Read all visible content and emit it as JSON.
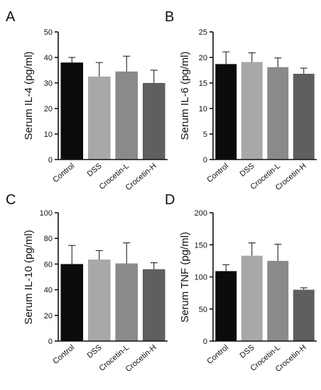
{
  "chart_data": [
    {
      "panel": "A",
      "type": "bar",
      "ylabel": "Serum IL-4 (pg/ml)",
      "categories": [
        "Control",
        "DSS",
        "Crocetin-L",
        "Crocetin-H"
      ],
      "values": [
        38,
        32.5,
        34.5,
        30
      ],
      "errors": [
        2,
        5.5,
        6,
        5
      ],
      "ylim": [
        0,
        50
      ],
      "yticks": [
        0,
        10,
        20,
        30,
        40,
        50
      ],
      "grid": false,
      "bar_colors": [
        "#0b0b0b",
        "#a8a8ab",
        "#8a8a8a",
        "#5f5f5f"
      ]
    },
    {
      "panel": "B",
      "type": "bar",
      "ylabel": "Serum IL-6 (pg/ml)",
      "categories": [
        "Control",
        "DSS",
        "Crocetin-L",
        "Crocetin-H"
      ],
      "values": [
        18.7,
        19.1,
        18.1,
        16.8
      ],
      "errors": [
        2.4,
        1.8,
        1.8,
        1.1
      ],
      "ylim": [
        0,
        25
      ],
      "yticks": [
        0,
        5,
        10,
        15,
        20,
        25
      ],
      "grid": false,
      "bar_colors": [
        "#0b0b0b",
        "#a8a8ab",
        "#8a8a8a",
        "#5f5f5f"
      ]
    },
    {
      "panel": "C",
      "type": "bar",
      "ylabel": "Serum IL-10 (pg/ml)",
      "categories": [
        "Control",
        "DSS",
        "Crocetin-L",
        "Crocetin-H"
      ],
      "values": [
        60,
        63.5,
        60.5,
        56
      ],
      "errors": [
        14.5,
        7,
        16,
        5
      ],
      "ylim": [
        0,
        100
      ],
      "yticks": [
        0,
        20,
        40,
        60,
        80,
        100
      ],
      "grid": false,
      "bar_colors": [
        "#0b0b0b",
        "#a8a8ab",
        "#8a8a8a",
        "#5f5f5f"
      ]
    },
    {
      "panel": "D",
      "type": "bar",
      "ylabel": "Serum TNF (pg/ml)",
      "categories": [
        "Control",
        "DSS",
        "Crocetin-L",
        "Crocetin-H"
      ],
      "values": [
        109,
        133,
        125,
        80
      ],
      "errors": [
        10,
        20,
        26,
        3
      ],
      "ylim": [
        0,
        200
      ],
      "yticks": [
        0,
        50,
        100,
        150,
        200
      ],
      "grid": false,
      "bar_colors": [
        "#0b0b0b",
        "#a8a8ab",
        "#8a8a8a",
        "#5f5f5f"
      ]
    }
  ]
}
